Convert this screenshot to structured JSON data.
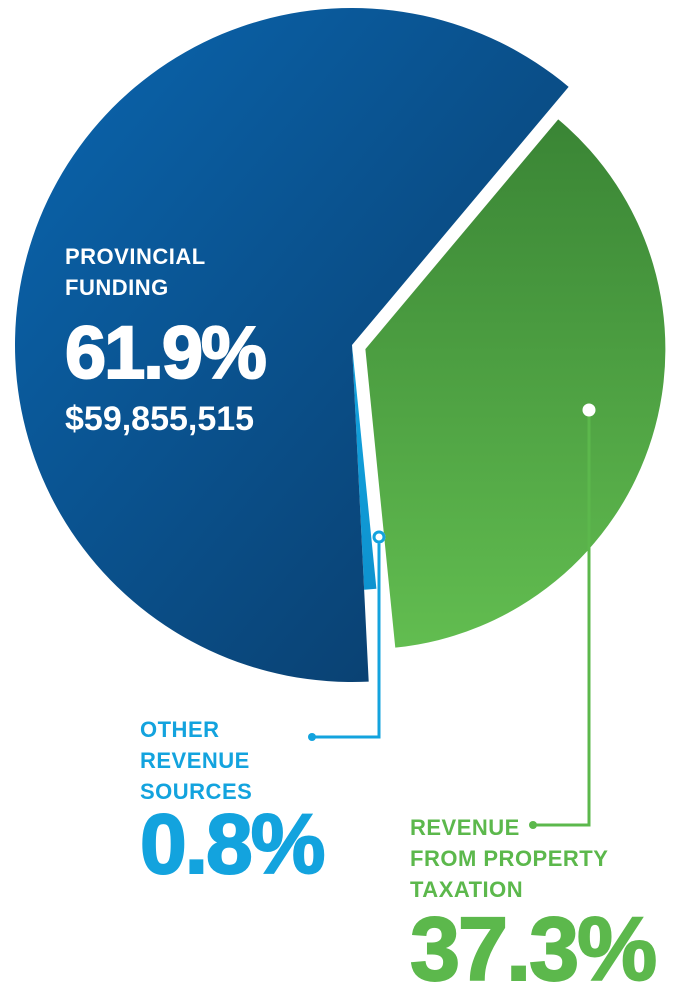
{
  "chart_data": {
    "type": "pie",
    "categories": [
      "PROVINCIAL FUNDING",
      "OTHER REVENUE SOURCES",
      "REVENUE FROM PROPERTY TAXATION"
    ],
    "values": [
      61.9,
      0.8,
      37.3
    ],
    "value_labels": [
      "61.9%",
      "0.8%",
      "37.3%"
    ],
    "colors": [
      "#0b4f8a",
      "#13a3de",
      "#4fa845"
    ],
    "annotation": "$59,855,515"
  }
}
